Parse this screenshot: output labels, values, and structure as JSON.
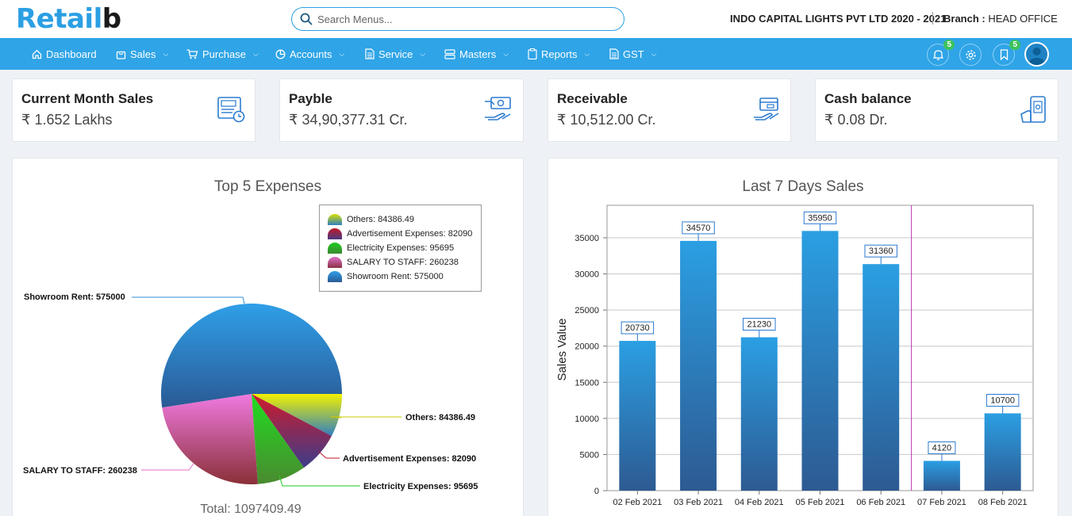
{
  "app": {
    "logo_main": "Retail",
    "logo_tail": "b"
  },
  "search": {
    "placeholder": "Search Menus..."
  },
  "header": {
    "company": "INDO CAPITAL LIGHTS PVT LTD 2020 - 2021",
    "branch_label": "Branch :",
    "branch_value": "HEAD OFFICE"
  },
  "nav": {
    "items": [
      {
        "label": "Dashboard",
        "icon": "home-icon"
      },
      {
        "label": "Sales",
        "icon": "bag-icon"
      },
      {
        "label": "Purchase",
        "icon": "cart-icon"
      },
      {
        "label": "Accounts",
        "icon": "pie-icon"
      },
      {
        "label": "Service",
        "icon": "document-icon"
      },
      {
        "label": "Masters",
        "icon": "server-icon"
      },
      {
        "label": "Reports",
        "icon": "clipboard-icon"
      },
      {
        "label": "GST",
        "icon": "document-icon"
      }
    ],
    "notifications_count": "5",
    "bookmarks_count": "5"
  },
  "cards": [
    {
      "title": "Current Month Sales",
      "value": "₹ 1.652 Lakhs",
      "icon": "sale-calendar-icon"
    },
    {
      "title": "Payble",
      "value": "₹ 34,90,377.31 Cr.",
      "icon": "cash-hand-icon"
    },
    {
      "title": "Receivable",
      "value": "₹ 10,512.00 Cr.",
      "icon": "card-hand-icon"
    },
    {
      "title": "Cash balance",
      "value": "₹ 0.08 Dr.",
      "icon": "mobile-cash-icon"
    }
  ],
  "expenses_panel": {
    "title": "Top 5 Expenses",
    "total": "Total: 1097409.49"
  },
  "sales_panel": {
    "title": "Last 7 Days Sales"
  },
  "chart_data": [
    {
      "type": "pie",
      "title": "Top 5 Expenses",
      "slices": [
        {
          "name": "Showroom Rent",
          "value": 575000,
          "color": "#2f8fd8",
          "label": "Showroom Rent: 575000"
        },
        {
          "name": "Others",
          "value": 84386.49,
          "color": "#d9e000",
          "label": "Others: 84386.49"
        },
        {
          "name": "Advertisement Expenses",
          "value": 82090,
          "color": "#c0182a",
          "label": "Advertisement Expenses: 82090"
        },
        {
          "name": "Electricity Expenses",
          "value": 95695,
          "color": "#1fcc1f",
          "label": "Electricity Expenses: 95695"
        },
        {
          "name": "SALARY TO STAFF",
          "value": 260238,
          "color": "#e070cc",
          "label": "SALARY TO STAFF: 260238"
        }
      ],
      "legend": [
        "Others: 84386.49",
        "Advertisement Expenses: 82090",
        "Electricity Expenses: 95695",
        "SALARY TO STAFF: 260238",
        "Showroom Rent: 575000"
      ],
      "legend_position": "top-right"
    },
    {
      "type": "bar",
      "title": "Last 7 Days Sales",
      "ylabel": "Sales Value",
      "xlabel": "",
      "categories": [
        "02 Feb 2021",
        "03 Feb 2021",
        "04 Feb 2021",
        "05 Feb 2021",
        "06 Feb 2021",
        "07 Feb 2021",
        "08 Feb 2021"
      ],
      "values": [
        20730,
        34570,
        21230,
        35950,
        31360,
        4120,
        10700
      ],
      "ylim": [
        0,
        39500
      ],
      "yticks": [
        0,
        5000,
        10000,
        15000,
        20000,
        25000,
        30000,
        35000
      ],
      "grid": true,
      "bar_color": "#2b9fe3",
      "divider_after_category": "06 Feb 2021"
    }
  ]
}
